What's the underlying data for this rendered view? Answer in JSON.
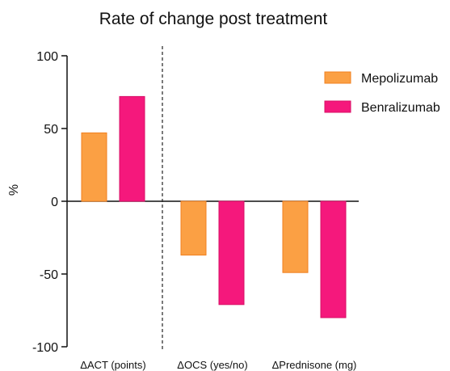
{
  "chart_data": {
    "type": "bar",
    "title": "Rate of change post treatment",
    "xlabel": "",
    "ylabel": "%",
    "ylim": [
      -100,
      100
    ],
    "yticks": [
      "100",
      "50",
      "0",
      "-50",
      "-100"
    ],
    "categories": [
      "ΔACT (points)",
      "ΔOCS (yes/no)",
      "ΔPrednisone (mg)"
    ],
    "series": [
      {
        "name": "Mepolizumab",
        "color": "#FBA044",
        "stroke": "#F08020",
        "values": [
          47,
          -37,
          -49
        ]
      },
      {
        "name": "Benralizumab",
        "color": "#F5187C",
        "stroke": "#D80F66",
        "values": [
          72,
          -71,
          -80
        ]
      }
    ],
    "legend_position": "top-right",
    "grid": false,
    "separator": "dashed line between first and second category"
  }
}
